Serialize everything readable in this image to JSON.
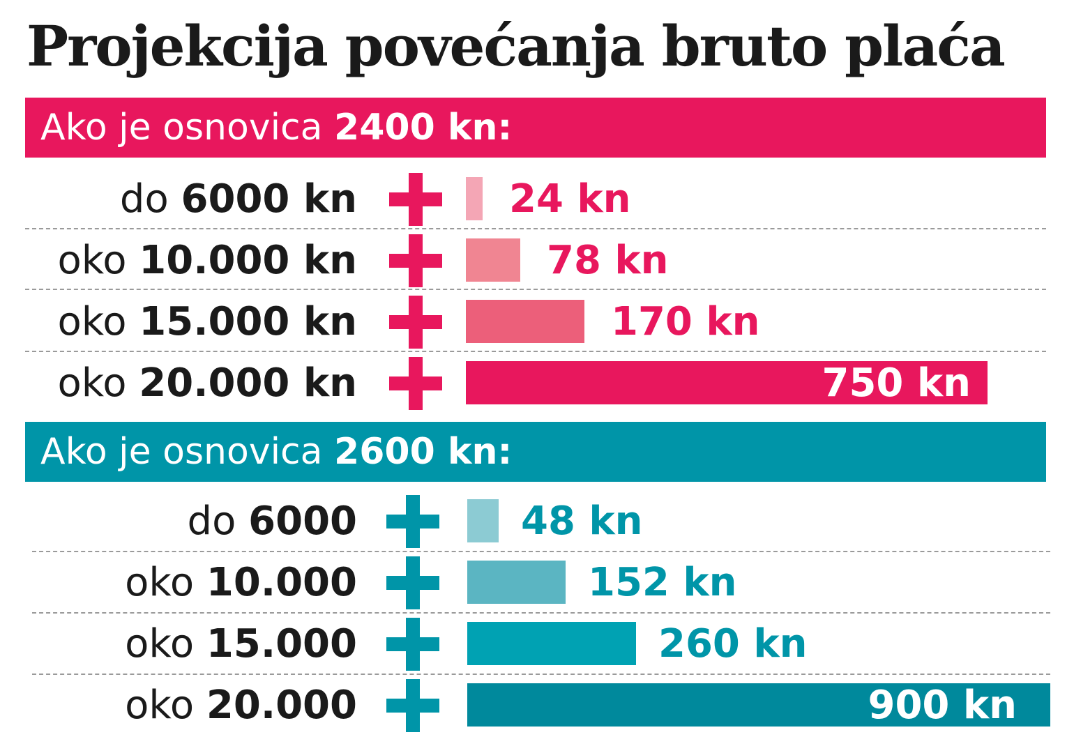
{
  "chart_data": {
    "type": "bar",
    "title": "Projekcija povećanja bruto plaća",
    "colors": {
      "pink": "#e8175d",
      "teal": "#0095a8"
    },
    "groups": [
      {
        "header_prefix": "Ako je osnovica ",
        "header_bold": "2400 kn:",
        "color": "pink",
        "rows": [
          {
            "label_prefix": "do ",
            "label_bold": "6000 kn",
            "value": 24,
            "value_label": "24 kn",
            "bar_color": "#f4a6b5"
          },
          {
            "label_prefix": "oko ",
            "label_bold": "10.000 kn",
            "value": 78,
            "value_label": "78 kn",
            "bar_color": "#f08592"
          },
          {
            "label_prefix": "oko ",
            "label_bold": "15.000 kn",
            "value": 170,
            "value_label": "170 kn",
            "bar_color": "#ec5f7a"
          },
          {
            "label_prefix": "oko ",
            "label_bold": "20.000 kn",
            "value": 750,
            "value_label": "750 kn",
            "bar_color": "#e8175d"
          }
        ]
      },
      {
        "header_prefix": "Ako je osnovica ",
        "header_bold": "2600 kn:",
        "color": "teal",
        "rows": [
          {
            "label_prefix": "do ",
            "label_bold": "6000",
            "value": 48,
            "value_label": "48 kn",
            "bar_color": "#8ccbd3"
          },
          {
            "label_prefix": "oko ",
            "label_bold": "10.000",
            "value": 152,
            "value_label": "152 kn",
            "bar_color": "#5bb5c2"
          },
          {
            "label_prefix": "oko ",
            "label_bold": "15.000",
            "value": 260,
            "value_label": "260 kn",
            "bar_color": "#00a2b3"
          },
          {
            "label_prefix": "oko ",
            "label_bold": "20.000",
            "value": 900,
            "value_label": "900 kn",
            "bar_color": "#00899c"
          }
        ]
      }
    ]
  }
}
